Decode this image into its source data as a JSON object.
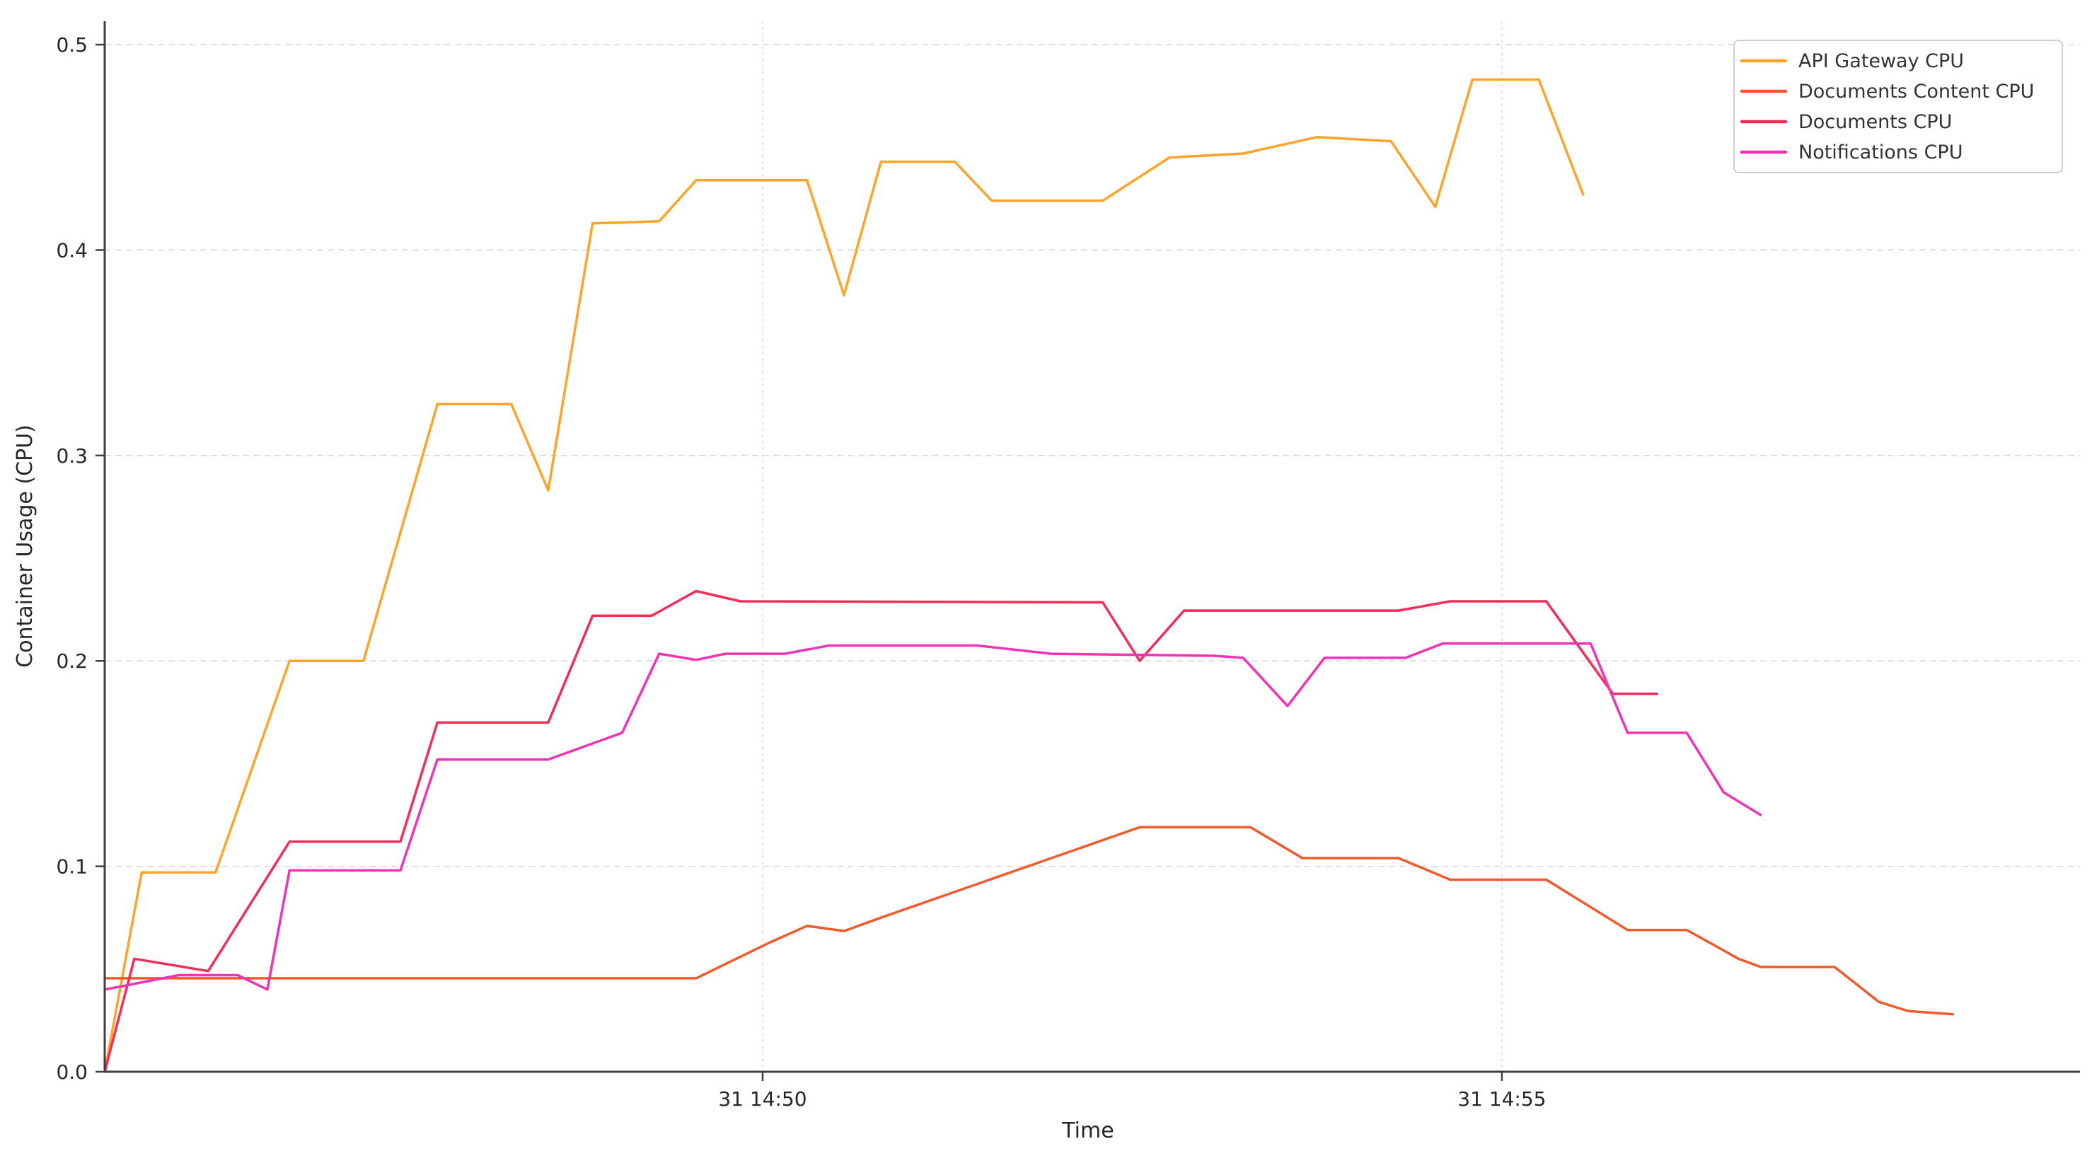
{
  "chart_data": {
    "type": "line",
    "title": "",
    "xlabel": "Time",
    "ylabel": "Container Usage (CPU)",
    "xlim": [
      0,
      13.36
    ],
    "ylim": [
      0,
      0.5114
    ],
    "grid": true,
    "legend_position": "upper right",
    "x_ticks": [
      {
        "t": 4.45,
        "label": "31 14:50"
      },
      {
        "t": 9.45,
        "label": "31 14:55"
      }
    ],
    "y_ticks": [
      0.0,
      0.1,
      0.2,
      0.3,
      0.4,
      0.5
    ],
    "x_axis_note": "t = minutes from start of visible window; labeled ticks are day 31, 14:50 and 14:55",
    "series": [
      {
        "name": "API Gateway CPU",
        "color": "#FFA32B",
        "points": [
          [
            0,
            0.0
          ],
          [
            0.25,
            0.097
          ],
          [
            0.75,
            0.097
          ],
          [
            1.25,
            0.2
          ],
          [
            1.75,
            0.2
          ],
          [
            2.25,
            0.325
          ],
          [
            2.75,
            0.325
          ],
          [
            3.0,
            0.283
          ],
          [
            3.3,
            0.413
          ],
          [
            3.75,
            0.414
          ],
          [
            4.0,
            0.434
          ],
          [
            4.75,
            0.434
          ],
          [
            5.0,
            0.378
          ],
          [
            5.25,
            0.443
          ],
          [
            5.75,
            0.443
          ],
          [
            6.0,
            0.424
          ],
          [
            6.75,
            0.424
          ],
          [
            7.2,
            0.445
          ],
          [
            7.7,
            0.447
          ],
          [
            8.2,
            0.455
          ],
          [
            8.7,
            0.453
          ],
          [
            9.0,
            0.421
          ],
          [
            9.25,
            0.483
          ],
          [
            9.7,
            0.483
          ],
          [
            10.0,
            0.427
          ]
        ]
      },
      {
        "name": "Documents Content CPU",
        "color": "#F05A2C",
        "points": [
          [
            0,
            0.0455
          ],
          [
            4.0,
            0.0455
          ],
          [
            4.5,
            0.063
          ],
          [
            4.75,
            0.071
          ],
          [
            5.0,
            0.0685
          ],
          [
            5.25,
            0.075
          ],
          [
            7.0,
            0.119
          ],
          [
            7.75,
            0.119
          ],
          [
            8.1,
            0.104
          ],
          [
            8.75,
            0.104
          ],
          [
            9.1,
            0.0935
          ],
          [
            9.75,
            0.0935
          ],
          [
            10.3,
            0.069
          ],
          [
            10.7,
            0.069
          ],
          [
            11.05,
            0.055
          ],
          [
            11.2,
            0.051
          ],
          [
            11.7,
            0.051
          ],
          [
            12.0,
            0.034
          ],
          [
            12.2,
            0.0295
          ],
          [
            12.5,
            0.028
          ]
        ]
      },
      {
        "name": "Documents CPU",
        "color": "#F32D58",
        "points": [
          [
            0,
            0.0
          ],
          [
            0.2,
            0.055
          ],
          [
            0.7,
            0.049
          ],
          [
            1.25,
            0.112
          ],
          [
            2.0,
            0.112
          ],
          [
            2.25,
            0.17
          ],
          [
            3.0,
            0.17
          ],
          [
            3.3,
            0.222
          ],
          [
            3.7,
            0.222
          ],
          [
            4.0,
            0.234
          ],
          [
            4.3,
            0.229
          ],
          [
            6.75,
            0.2285
          ],
          [
            7.0,
            0.2
          ],
          [
            7.3,
            0.2245
          ],
          [
            8.75,
            0.2245
          ],
          [
            9.1,
            0.229
          ],
          [
            9.75,
            0.229
          ],
          [
            10.2,
            0.184
          ],
          [
            10.5,
            0.184
          ]
        ]
      },
      {
        "name": "Notifications CPU",
        "color": "#F133B3",
        "points": [
          [
            0,
            0.04
          ],
          [
            0.5,
            0.047
          ],
          [
            0.9,
            0.047
          ],
          [
            1.1,
            0.04
          ],
          [
            1.25,
            0.098
          ],
          [
            2.0,
            0.098
          ],
          [
            2.25,
            0.152
          ],
          [
            3.0,
            0.152
          ],
          [
            3.5,
            0.165
          ],
          [
            3.75,
            0.2035
          ],
          [
            4.0,
            0.2005
          ],
          [
            4.2,
            0.2035
          ],
          [
            4.6,
            0.2035
          ],
          [
            4.9,
            0.2075
          ],
          [
            5.9,
            0.2075
          ],
          [
            6.4,
            0.2035
          ],
          [
            7.5,
            0.2025
          ],
          [
            7.7,
            0.2015
          ],
          [
            8.0,
            0.178
          ],
          [
            8.25,
            0.2015
          ],
          [
            8.8,
            0.2015
          ],
          [
            9.05,
            0.2085
          ],
          [
            10.05,
            0.2085
          ],
          [
            10.3,
            0.165
          ],
          [
            10.7,
            0.165
          ],
          [
            10.95,
            0.136
          ],
          [
            11.2,
            0.125
          ]
        ]
      }
    ]
  },
  "colors": {
    "background": "#FFFFFF",
    "spine": "#3F3F3F",
    "grid": "#D7D7D7",
    "tick_label": "#262626",
    "legend_border": "#CFCFCF",
    "legend_text": "#333333"
  }
}
